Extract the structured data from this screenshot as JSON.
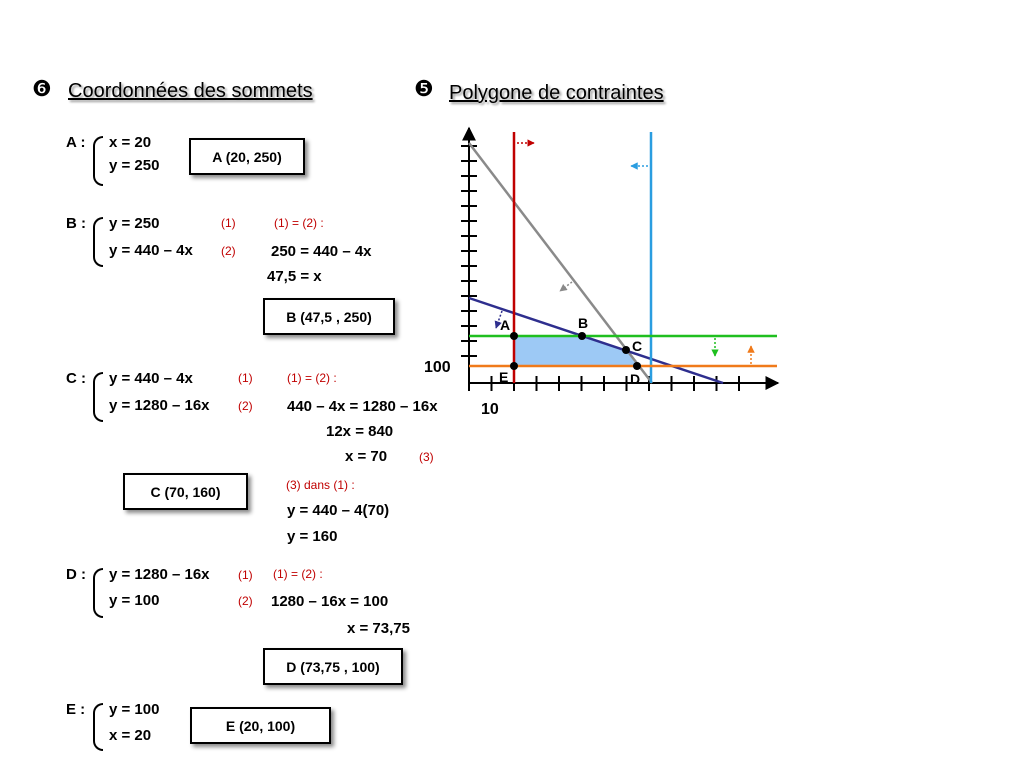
{
  "left_section": {
    "number": "❻",
    "title": "Coordonnées des sommets"
  },
  "right_section": {
    "number": "❺",
    "title": "Polygone de contraintes"
  },
  "vertexA": {
    "label": "A :",
    "eq1": "x  =  20",
    "eq2": "y  =  250",
    "result": "A (20, 250)"
  },
  "vertexB": {
    "label": "B :",
    "eq1": "y  =  250",
    "eq2": "y  =  440 – 4x",
    "tag1": "(1)",
    "tag2": "(2)",
    "note": "(1) = (2) :",
    "step1": "250  =  440 – 4x",
    "step2": "47,5  =  x",
    "result": "B (47,5 , 250)"
  },
  "vertexC": {
    "label": "C :",
    "eq1": "y  =  440 – 4x",
    "eq2": "y  =  1280 – 16x",
    "tag1": "(1)",
    "tag2": "(2)",
    "note": "(1) = (2) :",
    "step1": "440 – 4x  =  1280 – 16x",
    "step2": "12x  =  840",
    "step3": "x  =  70",
    "tag3": "(3)",
    "note2": "(3) dans (1) :",
    "step4": "y  =  440 – 4(70)",
    "step5": "y  =  160",
    "result": "C (70, 160)"
  },
  "vertexD": {
    "label": "D :",
    "eq1": "y  =  1280 – 16x",
    "eq2": "y  =  100",
    "tag1": "(1)",
    "tag2": "(2)",
    "note": "(1) = (2) :",
    "step1": "1280 – 16x  =  100",
    "step2": "x  =  73,75",
    "result": "D (73,75 , 100)"
  },
  "vertexE": {
    "label": "E :",
    "eq1": "y  =  100",
    "eq2": "x  =  20",
    "result": "E (20, 100)"
  },
  "graph": {
    "y_tick_label": "100",
    "x_tick_label": "10",
    "point_labels": {
      "A": "A",
      "B": "B",
      "C": "C",
      "D": "D",
      "E": "E"
    },
    "colors": {
      "x_eq_20": "#c00000",
      "x_eq_greater": "#2a9de0",
      "y_eq_250": "#1fbf1f",
      "y_eq_100": "#f07a1a",
      "line_440_4x": "#2e2e8e",
      "line_1280_16x": "#8a8a8a",
      "feasible_region": "#9dc9f5"
    }
  }
}
